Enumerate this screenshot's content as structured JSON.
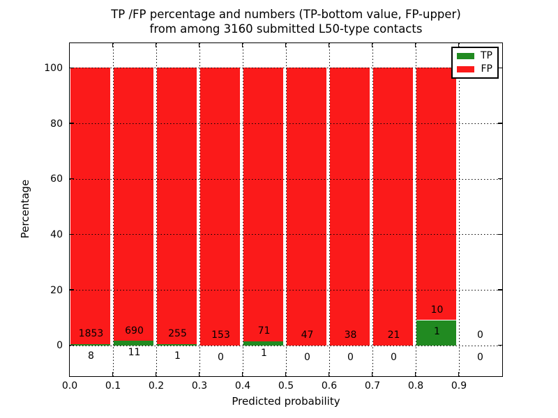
{
  "figure": {
    "title_line1": "TP /FP percentage and numbers (TP-bottom value, FP-upper)",
    "title_line2": "from among 3160 submitted L50-type contacts"
  },
  "chart_data": {
    "type": "bar",
    "stacked": true,
    "title": "TP /FP percentage and numbers (TP-bottom value, FP-upper) from among 3160 submitted L50-type contacts",
    "xlabel": "Predicted probability",
    "ylabel": "Percentage",
    "total_contacts": 3160,
    "bin_width": 0.1,
    "bin_starts": [
      0.0,
      0.1,
      0.2,
      0.3,
      0.4,
      0.5,
      0.6,
      0.7,
      0.8,
      0.9
    ],
    "series": [
      {
        "name": "TP",
        "color": "#218a21",
        "counts": [
          8,
          11,
          1,
          0,
          1,
          0,
          0,
          0,
          1,
          0
        ]
      },
      {
        "name": "FP",
        "color": "#fb1a1a",
        "counts": [
          1853,
          690,
          255,
          153,
          71,
          47,
          38,
          21,
          10,
          0
        ]
      }
    ],
    "bars_show": "stacked percentage of each bin total (TP bottom + FP upper = 100%), count numbers printed per bar",
    "xticks": [
      "0.0",
      "0.1",
      "0.2",
      "0.3",
      "0.4",
      "0.5",
      "0.6",
      "0.7",
      "0.8",
      "0.9"
    ],
    "yticks": [
      0,
      20,
      40,
      60,
      80,
      100
    ],
    "xlim": [
      0.0,
      1.0
    ],
    "ylim": [
      -11,
      109
    ],
    "grid": "dotted black, both axes, drawn above bars",
    "legend": {
      "position": "upper-right",
      "entries": [
        {
          "label": "TP",
          "color": "#218a21"
        },
        {
          "label": "FP",
          "color": "#fb1a1a"
        }
      ]
    }
  }
}
